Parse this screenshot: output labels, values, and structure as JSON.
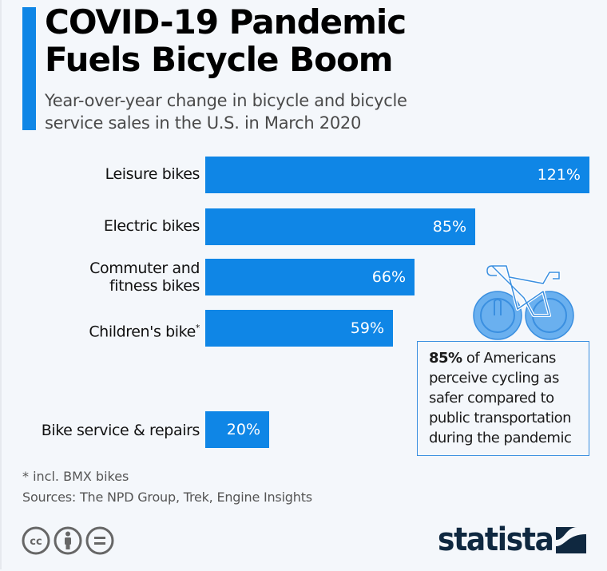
{
  "header": {
    "title_lines": [
      "COVID-19 Pandemic",
      "Fuels Bicycle Boom"
    ],
    "subtitle_lines": [
      "Year-over-year change in bicycle and bicycle",
      "service sales in the U.S. in March 2020"
    ]
  },
  "colors": {
    "accent": "#0f86e6",
    "bar": "#0f86e6",
    "background": "#f4f7fb",
    "logo": "#0f2840"
  },
  "chart_data": {
    "type": "bar",
    "orientation": "horizontal",
    "title": "COVID-19 Pandemic Fuels Bicycle Boom",
    "subtitle": "Year-over-year change in bicycle and bicycle service sales in the U.S. in March 2020",
    "categories": [
      "Leisure bikes",
      "Electric bikes",
      "Commuter and fitness bikes",
      "Children's bike*",
      "Bike service & repairs"
    ],
    "values": [
      121,
      85,
      66,
      59,
      20
    ],
    "value_labels": [
      "121%",
      "85%",
      "66%",
      "59%",
      "20%"
    ],
    "unit": "%",
    "xlim": [
      0,
      121
    ],
    "grid": false,
    "legend": "none"
  },
  "labels": {
    "leisure": "Leisure bikes",
    "electric": "Electric bikes",
    "commuter_lines": [
      "Commuter and",
      "fitness bikes"
    ],
    "children": "Children's bike",
    "children_mark": "*",
    "service": "Bike service & repairs"
  },
  "callout": {
    "highlight": "85%",
    "lines": [
      " of Americans",
      "perceive cycling as",
      "safer compared to",
      "public transportation",
      "during the pandemic"
    ],
    "icon": "bicycle-icon"
  },
  "footer": {
    "footnote": "* incl. BMX bikes",
    "sources": "Sources: The NPD Group, Trek, Engine Insights",
    "license_icons": [
      "creative-commons-icon",
      "attribution-icon",
      "no-derivatives-icon"
    ],
    "logo_text": "statista"
  }
}
